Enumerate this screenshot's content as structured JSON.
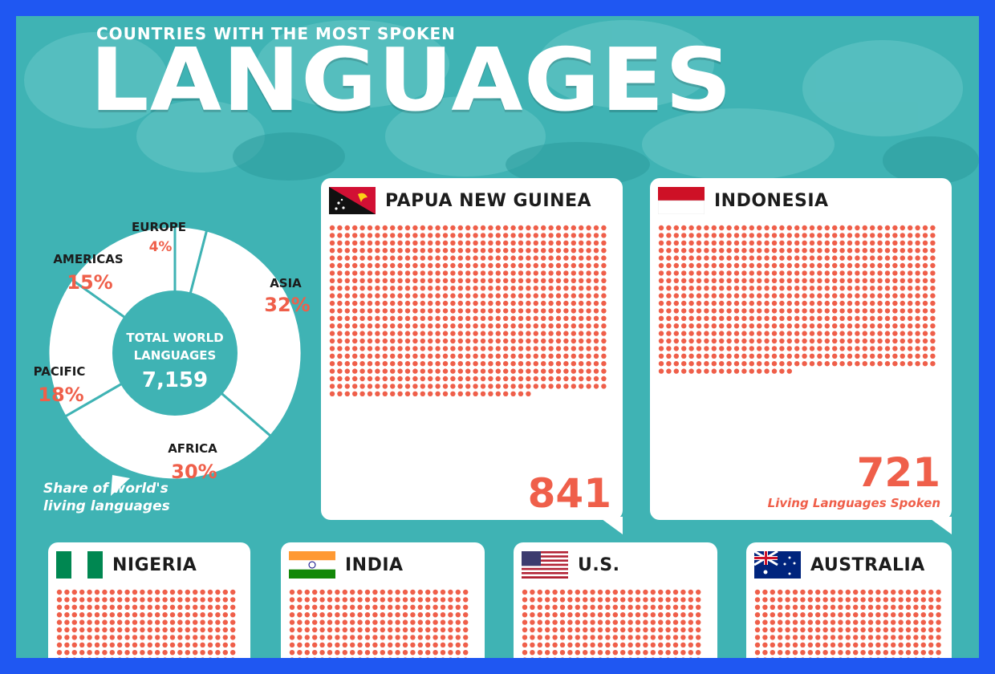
{
  "header": {
    "subtitle": "COUNTRIES WITH THE MOST SPOKEN",
    "title": "LANGUAGES"
  },
  "colors": {
    "background": "#3fb3b4",
    "frame": "#1f57f2",
    "dot": "#ef5f4a",
    "card": "#ffffff",
    "donut_divider": "#3fb3b4"
  },
  "chart_data": [
    {
      "type": "pie",
      "title": "TOTAL WORLD LANGUAGES",
      "total_label": "7,159",
      "note": "Share of world's living languages",
      "slices": [
        {
          "label": "EUROPE",
          "percent_label": "4%",
          "value": 4
        },
        {
          "label": "ASIA",
          "percent_label": "32%",
          "value": 32
        },
        {
          "label": "AFRICA",
          "percent_label": "30%",
          "value": 30
        },
        {
          "label": "PACIFIC",
          "percent_label": "18%",
          "value": 18
        },
        {
          "label": "AMERICAS",
          "percent_label": "15%",
          "value": 15
        }
      ]
    },
    {
      "type": "bar",
      "ylabel": "Living Languages Spoken",
      "categories": [
        "PAPUA NEW GUINEA",
        "INDONESIA",
        "NIGERIA",
        "INDIA",
        "U.S.",
        "AUSTRALIA"
      ],
      "values": [
        841,
        721,
        null,
        null,
        null,
        null
      ],
      "value_labels": [
        "841",
        "721",
        "",
        "",
        "",
        ""
      ],
      "flags": [
        "papua-new-guinea-flag",
        "indonesia-flag",
        "nigeria-flag",
        "india-flag",
        "us-flag",
        "australia-flag"
      ]
    }
  ],
  "cards": [
    {
      "country": "PAPUA NEW GUINEA",
      "value_label": "841",
      "caption": ""
    },
    {
      "country": "INDONESIA",
      "value_label": "721",
      "caption": "Living Languages Spoken"
    },
    {
      "country": "NIGERIA"
    },
    {
      "country": "INDIA"
    },
    {
      "country": "U.S."
    },
    {
      "country": "AUSTRALIA"
    }
  ],
  "donut": {
    "center_line1": "TOTAL WORLD",
    "center_line2": "LANGUAGES",
    "total": "7,159",
    "note_line1": "Share of world's",
    "note_line2": "living languages"
  }
}
